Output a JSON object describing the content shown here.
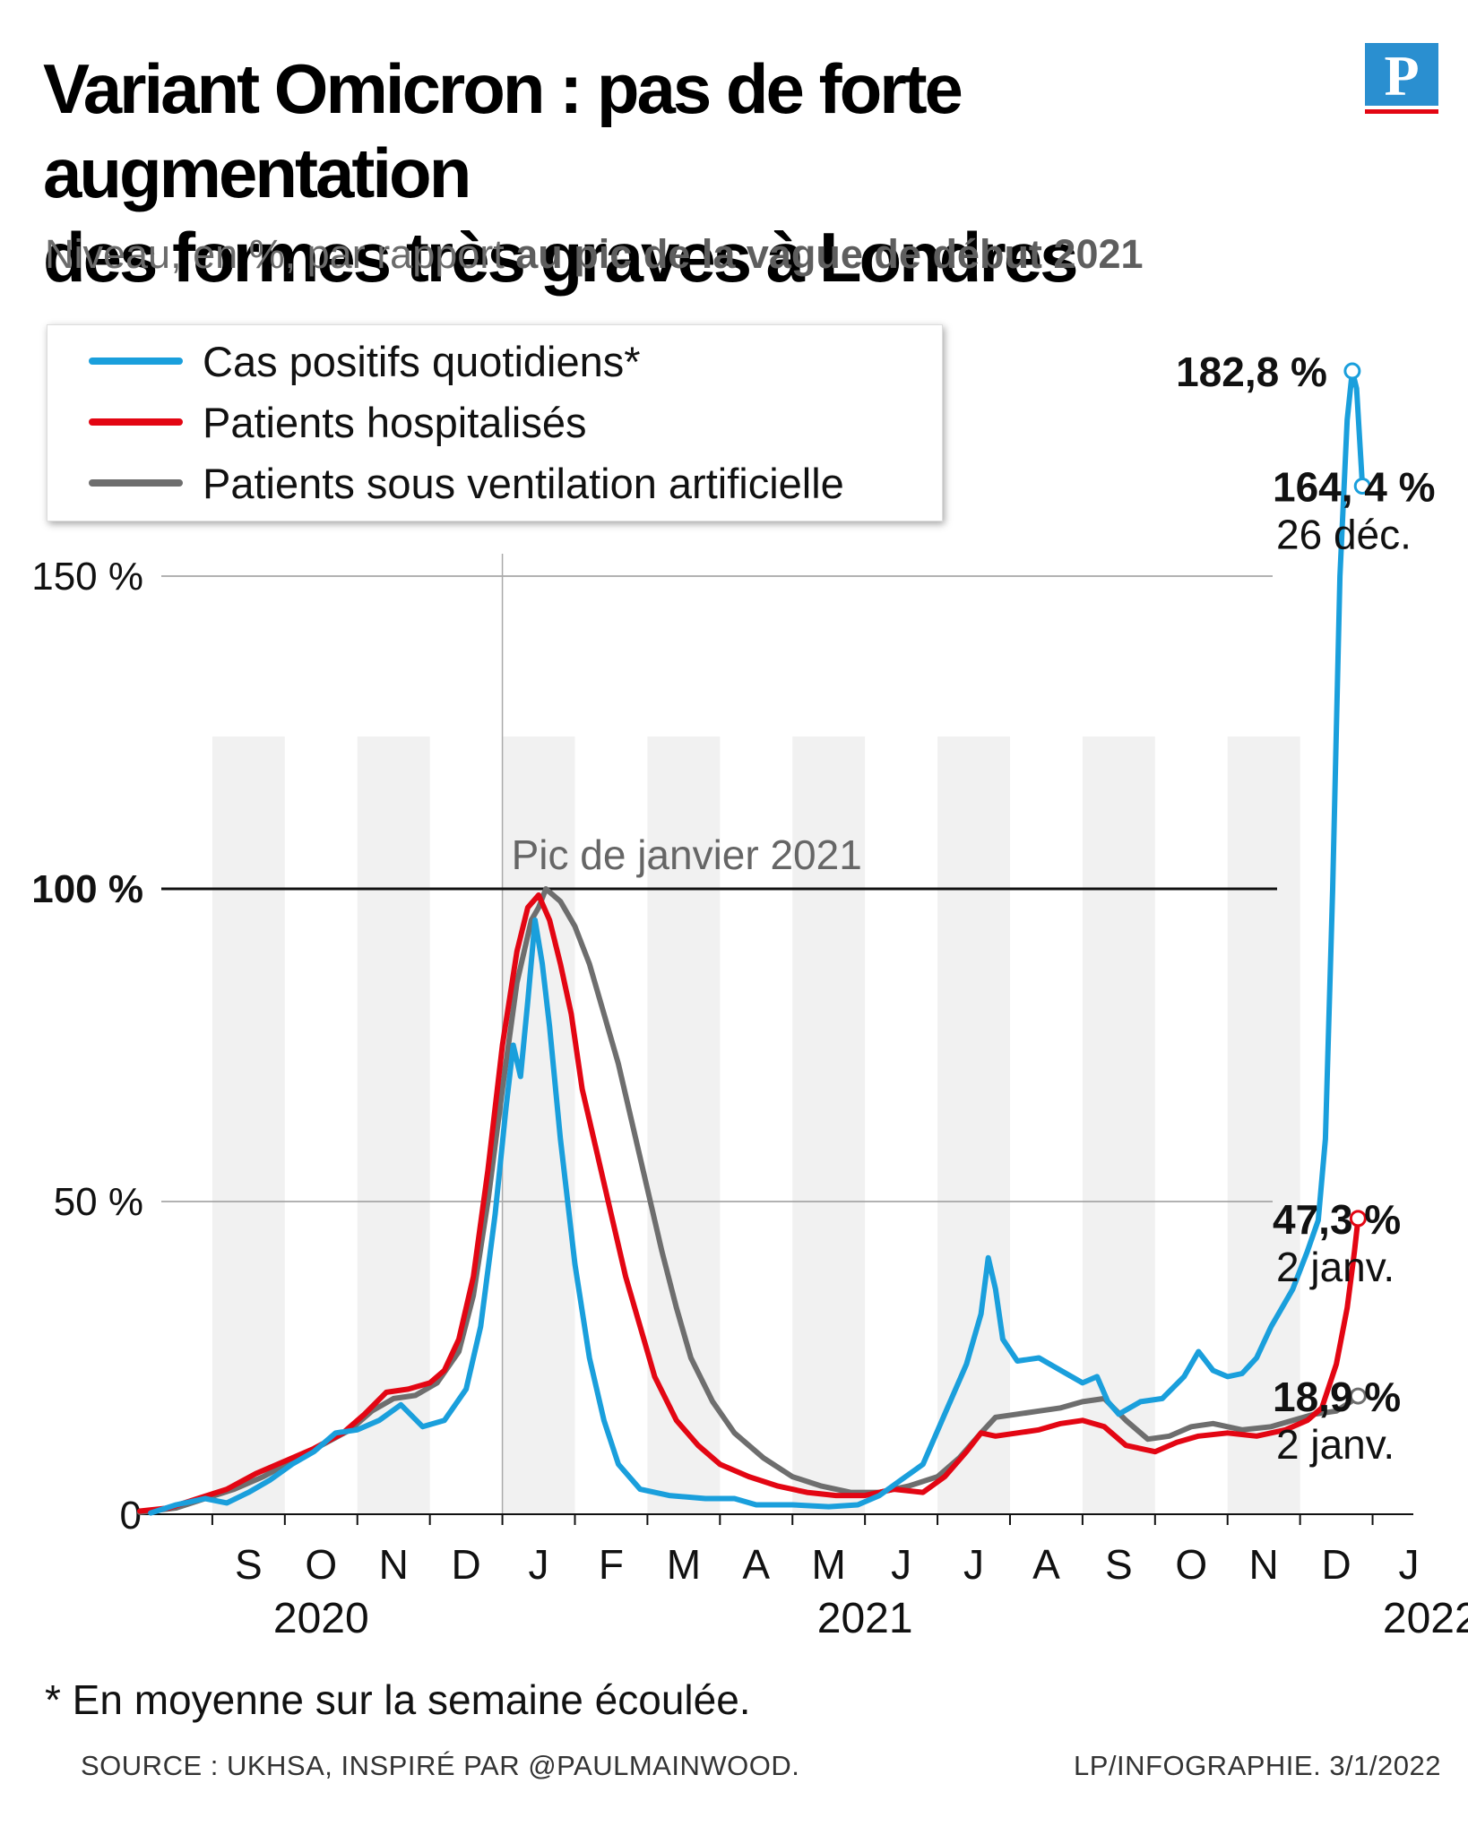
{
  "header": {
    "title_line1": "Variant Omicron : pas de forte augmentation",
    "title_line2": "des formes très graves à Londres",
    "subtitle_plain": "Niveau, en %, par rapport ",
    "subtitle_bold": "au pic de la vague de début 2021",
    "logo_letter": "P",
    "logo_color": "#2a8fd0",
    "logo_bar_color": "#e30613"
  },
  "chart_data": {
    "type": "line",
    "title": "Variant Omicron : pas de forte augmentation des formes très graves à Londres",
    "subtitle": "Niveau, en %, par rapport au pic de la vague de début 2021",
    "x_unit": "months since 2020-08-01",
    "xlim": [
      0,
      17.5
    ],
    "ylim": [
      0,
      185
    ],
    "y_ticks": [
      {
        "value": 0,
        "label": "0"
      },
      {
        "value": 50,
        "label": "50 %"
      },
      {
        "value": 100,
        "label": "100 %",
        "bold": true
      },
      {
        "value": 150,
        "label": "150 %"
      }
    ],
    "month_labels": [
      {
        "x": 1.5,
        "label": "S"
      },
      {
        "x": 2.5,
        "label": "O"
      },
      {
        "x": 3.5,
        "label": "N"
      },
      {
        "x": 4.5,
        "label": "D"
      },
      {
        "x": 5.5,
        "label": "J"
      },
      {
        "x": 6.5,
        "label": "F"
      },
      {
        "x": 7.5,
        "label": "M"
      },
      {
        "x": 8.5,
        "label": "A"
      },
      {
        "x": 9.5,
        "label": "M"
      },
      {
        "x": 10.5,
        "label": "J"
      },
      {
        "x": 11.5,
        "label": "J"
      },
      {
        "x": 12.5,
        "label": "A"
      },
      {
        "x": 13.5,
        "label": "S"
      },
      {
        "x": 14.5,
        "label": "O"
      },
      {
        "x": 15.5,
        "label": "N"
      },
      {
        "x": 16.5,
        "label": "D"
      },
      {
        "x": 17.5,
        "label": "J"
      }
    ],
    "year_labels": [
      {
        "x": 2.5,
        "label": "2020"
      },
      {
        "x": 10.0,
        "label": "2021"
      },
      {
        "x": 17.8,
        "label": "2022"
      }
    ],
    "reference_line": {
      "y": 100,
      "x_label": 5.0,
      "label": "Pic de janvier 2021"
    },
    "series": [
      {
        "name": "Cas positifs quotidiens*",
        "color": "#1a9fdc",
        "points": [
          [
            0.15,
            0.2
          ],
          [
            0.5,
            1.5
          ],
          [
            0.9,
            2.5
          ],
          [
            1.2,
            1.8
          ],
          [
            1.5,
            3.5
          ],
          [
            1.8,
            5.5
          ],
          [
            2.1,
            8
          ],
          [
            2.4,
            10
          ],
          [
            2.7,
            13
          ],
          [
            3.0,
            13.5
          ],
          [
            3.3,
            15
          ],
          [
            3.6,
            17.5
          ],
          [
            3.9,
            14
          ],
          [
            4.2,
            15
          ],
          [
            4.5,
            20
          ],
          [
            4.7,
            30
          ],
          [
            4.9,
            48
          ],
          [
            5.05,
            65
          ],
          [
            5.15,
            75
          ],
          [
            5.25,
            70
          ],
          [
            5.35,
            82
          ],
          [
            5.45,
            95
          ],
          [
            5.55,
            88
          ],
          [
            5.65,
            78
          ],
          [
            5.8,
            60
          ],
          [
            6.0,
            40
          ],
          [
            6.2,
            25
          ],
          [
            6.4,
            15
          ],
          [
            6.6,
            8
          ],
          [
            6.9,
            4
          ],
          [
            7.3,
            3
          ],
          [
            7.8,
            2.5
          ],
          [
            8.2,
            2.5
          ],
          [
            8.5,
            1.5
          ],
          [
            9.0,
            1.5
          ],
          [
            9.5,
            1.2
          ],
          [
            9.9,
            1.5
          ],
          [
            10.2,
            3
          ],
          [
            10.5,
            5.5
          ],
          [
            10.8,
            8
          ],
          [
            11.1,
            16
          ],
          [
            11.4,
            24
          ],
          [
            11.6,
            32
          ],
          [
            11.7,
            41
          ],
          [
            11.8,
            36
          ],
          [
            11.9,
            28
          ],
          [
            12.1,
            24.5
          ],
          [
            12.4,
            25
          ],
          [
            12.7,
            23
          ],
          [
            13.0,
            21
          ],
          [
            13.2,
            22
          ],
          [
            13.35,
            18
          ],
          [
            13.5,
            16
          ],
          [
            13.8,
            18
          ],
          [
            14.1,
            18.5
          ],
          [
            14.4,
            22
          ],
          [
            14.6,
            26
          ],
          [
            14.8,
            23
          ],
          [
            15.0,
            22
          ],
          [
            15.2,
            22.5
          ],
          [
            15.4,
            25
          ],
          [
            15.6,
            30
          ],
          [
            15.9,
            36
          ],
          [
            16.1,
            42
          ],
          [
            16.25,
            47
          ],
          [
            16.35,
            60
          ],
          [
            16.45,
            100
          ],
          [
            16.55,
            150
          ],
          [
            16.65,
            175
          ],
          [
            16.72,
            182.8
          ],
          [
            16.78,
            180
          ],
          [
            16.86,
            164.4
          ]
        ]
      },
      {
        "name": "Patients hospitalisés",
        "color": "#e30613",
        "points": [
          [
            0.0,
            0.5
          ],
          [
            0.4,
            1
          ],
          [
            0.8,
            2.5
          ],
          [
            1.2,
            4
          ],
          [
            1.6,
            6.5
          ],
          [
            2.0,
            8.5
          ],
          [
            2.4,
            10.5
          ],
          [
            2.8,
            13
          ],
          [
            3.1,
            16
          ],
          [
            3.4,
            19.5
          ],
          [
            3.7,
            20
          ],
          [
            4.0,
            21
          ],
          [
            4.2,
            23
          ],
          [
            4.4,
            28
          ],
          [
            4.6,
            38
          ],
          [
            4.8,
            55
          ],
          [
            5.0,
            75
          ],
          [
            5.2,
            90
          ],
          [
            5.35,
            97
          ],
          [
            5.5,
            99
          ],
          [
            5.65,
            95
          ],
          [
            5.8,
            88
          ],
          [
            5.95,
            80
          ],
          [
            6.1,
            68
          ],
          [
            6.3,
            58
          ],
          [
            6.5,
            48
          ],
          [
            6.7,
            38
          ],
          [
            6.9,
            30
          ],
          [
            7.1,
            22
          ],
          [
            7.4,
            15
          ],
          [
            7.7,
            11
          ],
          [
            8.0,
            8
          ],
          [
            8.4,
            6
          ],
          [
            8.8,
            4.5
          ],
          [
            9.2,
            3.5
          ],
          [
            9.6,
            3
          ],
          [
            10.0,
            3
          ],
          [
            10.4,
            4
          ],
          [
            10.8,
            3.5
          ],
          [
            11.1,
            6
          ],
          [
            11.4,
            10
          ],
          [
            11.6,
            13
          ],
          [
            11.8,
            12.5
          ],
          [
            12.1,
            13
          ],
          [
            12.4,
            13.5
          ],
          [
            12.7,
            14.5
          ],
          [
            13.0,
            15
          ],
          [
            13.3,
            14
          ],
          [
            13.6,
            11
          ],
          [
            14.0,
            10
          ],
          [
            14.3,
            11.5
          ],
          [
            14.6,
            12.5
          ],
          [
            15.0,
            13
          ],
          [
            15.4,
            12.5
          ],
          [
            15.8,
            13.5
          ],
          [
            16.1,
            15
          ],
          [
            16.3,
            17
          ],
          [
            16.5,
            24
          ],
          [
            16.65,
            33
          ],
          [
            16.75,
            42
          ],
          [
            16.8,
            47.3
          ]
        ]
      },
      {
        "name": "Patients sous ventilation artificielle",
        "color": "#6e6e6e",
        "points": [
          [
            0.0,
            0.3
          ],
          [
            0.5,
            1
          ],
          [
            0.9,
            2.5
          ],
          [
            1.3,
            4
          ],
          [
            1.7,
            6
          ],
          [
            2.1,
            8.5
          ],
          [
            2.5,
            11
          ],
          [
            2.9,
            13.5
          ],
          [
            3.2,
            16.5
          ],
          [
            3.5,
            18.5
          ],
          [
            3.8,
            19
          ],
          [
            4.1,
            21
          ],
          [
            4.4,
            26
          ],
          [
            4.6,
            35
          ],
          [
            4.8,
            50
          ],
          [
            5.0,
            68
          ],
          [
            5.2,
            85
          ],
          [
            5.4,
            95
          ],
          [
            5.5,
            97
          ],
          [
            5.6,
            100
          ],
          [
            5.8,
            98
          ],
          [
            6.0,
            94
          ],
          [
            6.2,
            88
          ],
          [
            6.4,
            80
          ],
          [
            6.6,
            72
          ],
          [
            6.8,
            62
          ],
          [
            7.0,
            52
          ],
          [
            7.2,
            42
          ],
          [
            7.4,
            33
          ],
          [
            7.6,
            25
          ],
          [
            7.9,
            18
          ],
          [
            8.2,
            13
          ],
          [
            8.6,
            9
          ],
          [
            9.0,
            6
          ],
          [
            9.4,
            4.5
          ],
          [
            9.8,
            3.5
          ],
          [
            10.2,
            3.5
          ],
          [
            10.6,
            4.5
          ],
          [
            11.0,
            6
          ],
          [
            11.3,
            9
          ],
          [
            11.6,
            13
          ],
          [
            11.8,
            15.5
          ],
          [
            12.1,
            16
          ],
          [
            12.4,
            16.5
          ],
          [
            12.7,
            17
          ],
          [
            13.0,
            18
          ],
          [
            13.3,
            18.5
          ],
          [
            13.6,
            15
          ],
          [
            13.9,
            12
          ],
          [
            14.2,
            12.5
          ],
          [
            14.5,
            14
          ],
          [
            14.8,
            14.5
          ],
          [
            15.2,
            13.5
          ],
          [
            15.6,
            14
          ],
          [
            15.9,
            15
          ],
          [
            16.2,
            16
          ],
          [
            16.5,
            16.5
          ],
          [
            16.7,
            18
          ],
          [
            16.8,
            18.9
          ]
        ]
      }
    ],
    "annotations": [
      {
        "series": 0,
        "x": 16.72,
        "y": 182.8,
        "value_label": "182,8 %",
        "date_label": "",
        "side": "left"
      },
      {
        "series": 0,
        "x": 16.86,
        "y": 164.4,
        "value_label": "164, 4 %",
        "date_label": "26 déc.",
        "side": "right"
      },
      {
        "series": 1,
        "x": 16.8,
        "y": 47.3,
        "value_label": "47,3 %",
        "date_label": "2 janv.",
        "side": "right"
      },
      {
        "series": 2,
        "x": 16.8,
        "y": 18.9,
        "value_label": "18,9 %",
        "date_label": "2 janv.",
        "side": "right"
      }
    ]
  },
  "footer": {
    "footnote": "* En moyenne sur la semaine écoulée.",
    "source": "SOURCE : UKHSA, INSPIRÉ PAR @PAULMAINWOOD.",
    "credit": "LP/INFOGRAPHIE. 3/1/2022"
  }
}
